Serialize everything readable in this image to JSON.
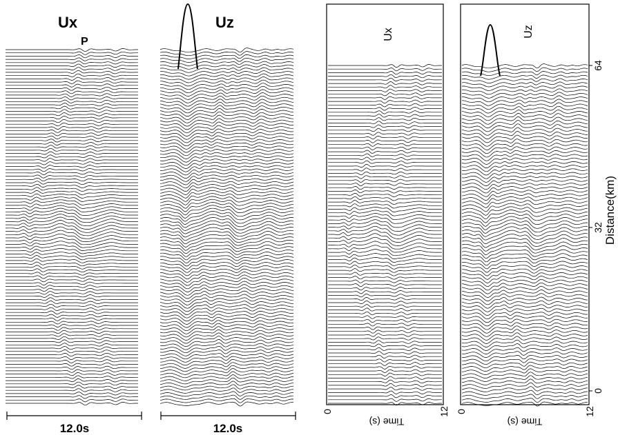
{
  "figure": {
    "left": {
      "panel_ux": {
        "title": "Ux",
        "phase_label": "P",
        "time_bar_label": "12.0s"
      },
      "panel_uz": {
        "title": "Uz",
        "time_bar_label": "12.0s"
      }
    },
    "right": {
      "panel_ux": {
        "title": "Ux",
        "time_label": "Time (s)",
        "tick_start": "0",
        "tick_end": "12"
      },
      "panel_uz": {
        "title": "Uz",
        "time_label": "Time (s)",
        "tick_start": "0",
        "tick_end": "12"
      },
      "distance_label": "Distance(km)",
      "distance_ticks": [
        "0",
        "32",
        "64"
      ]
    }
  }
}
